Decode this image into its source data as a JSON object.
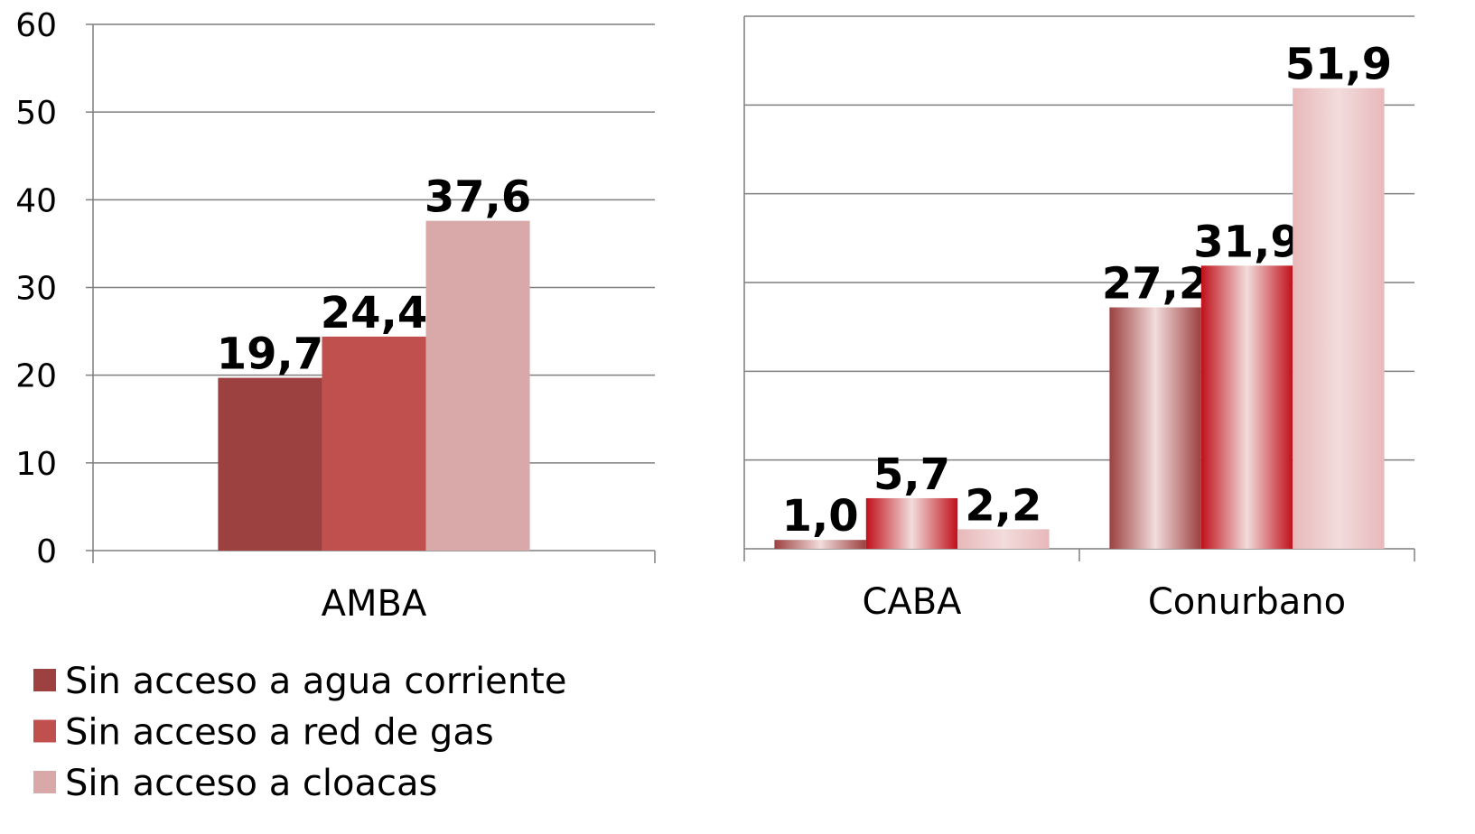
{
  "chart_data": [
    {
      "type": "bar",
      "categories": [
        "AMBA"
      ],
      "series": [
        {
          "name": "Sin acceso a agua corriente",
          "color": "#9c4040",
          "values": [
            19.7
          ],
          "value_labels": [
            "19,7"
          ]
        },
        {
          "name": "Sin acceso a red de gas",
          "color": "#c0504d",
          "values": [
            24.4
          ],
          "value_labels": [
            "24,4"
          ]
        },
        {
          "name": "Sin acceso a cloacas",
          "color": "#d9a9aa",
          "values": [
            37.6
          ],
          "value_labels": [
            "37,6"
          ]
        }
      ],
      "ylim": [
        0,
        60
      ],
      "yticks": [
        0,
        10,
        20,
        30,
        40,
        50,
        60
      ],
      "grid": true,
      "legend": "bottom-left"
    },
    {
      "type": "bar",
      "categories": [
        "CABA",
        "Conurbano"
      ],
      "series": [
        {
          "color": "#9c4040",
          "values": [
            1.0,
            27.2
          ],
          "value_labels": [
            "1,0",
            "27,2"
          ]
        },
        {
          "color": "#c0101a",
          "values": [
            5.7,
            31.9
          ],
          "value_labels": [
            "5,7",
            "31,9"
          ]
        },
        {
          "color": "#e8b8ba",
          "values": [
            2.2,
            51.9
          ],
          "value_labels": [
            "2,2",
            "51,9"
          ]
        }
      ],
      "ylim": [
        0,
        60
      ],
      "yticks": [
        0,
        10,
        20,
        30,
        40,
        50,
        60
      ],
      "grid": true,
      "gradient": true
    }
  ]
}
